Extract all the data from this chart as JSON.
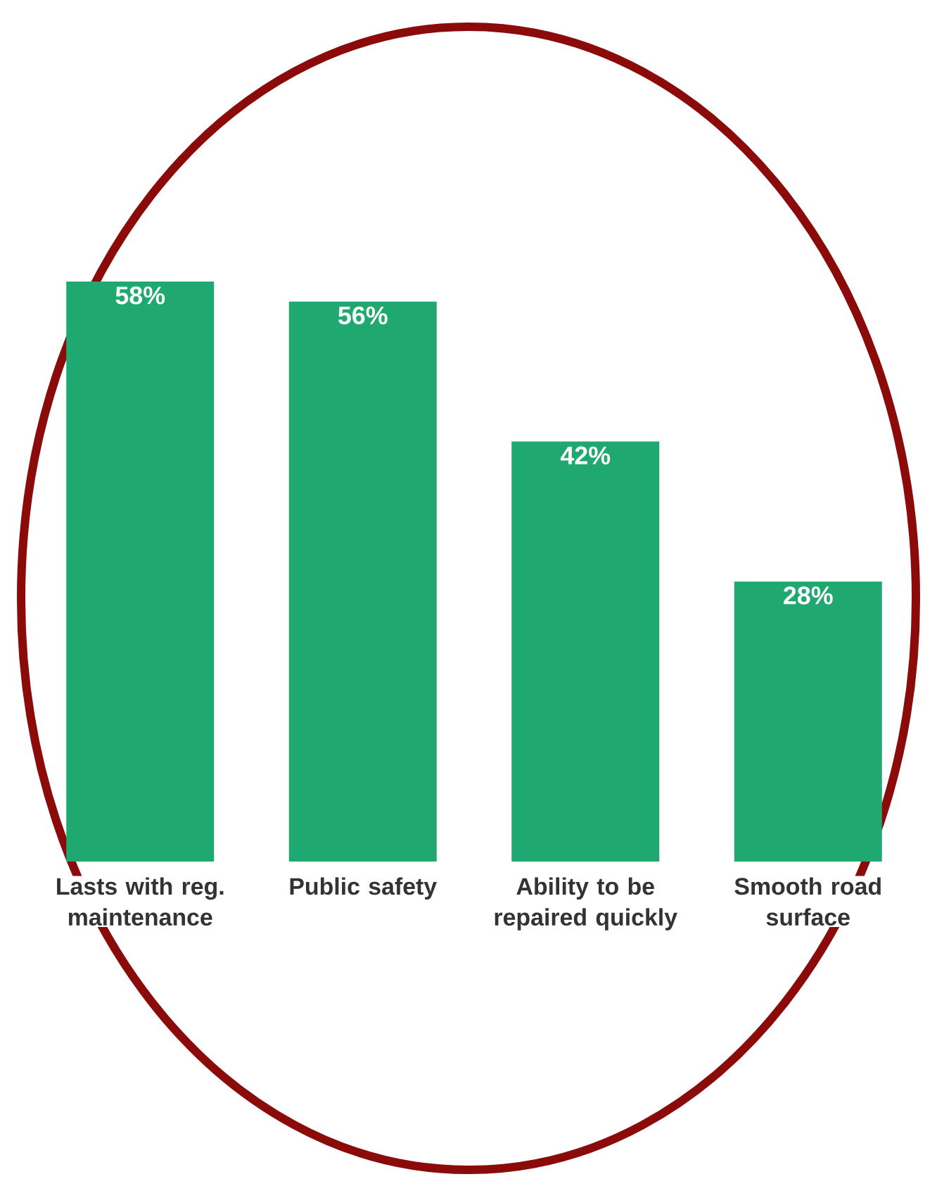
{
  "chart_data": {
    "type": "bar",
    "categories": [
      "Lasts with reg. maintenance",
      "Public safety",
      "Ability to be repaired quickly",
      "Smooth road surface"
    ],
    "values": [
      58,
      56,
      42,
      28
    ],
    "value_labels": [
      "58%",
      "56%",
      "42%",
      "28%"
    ],
    "color": "#1fa870"
  }
}
